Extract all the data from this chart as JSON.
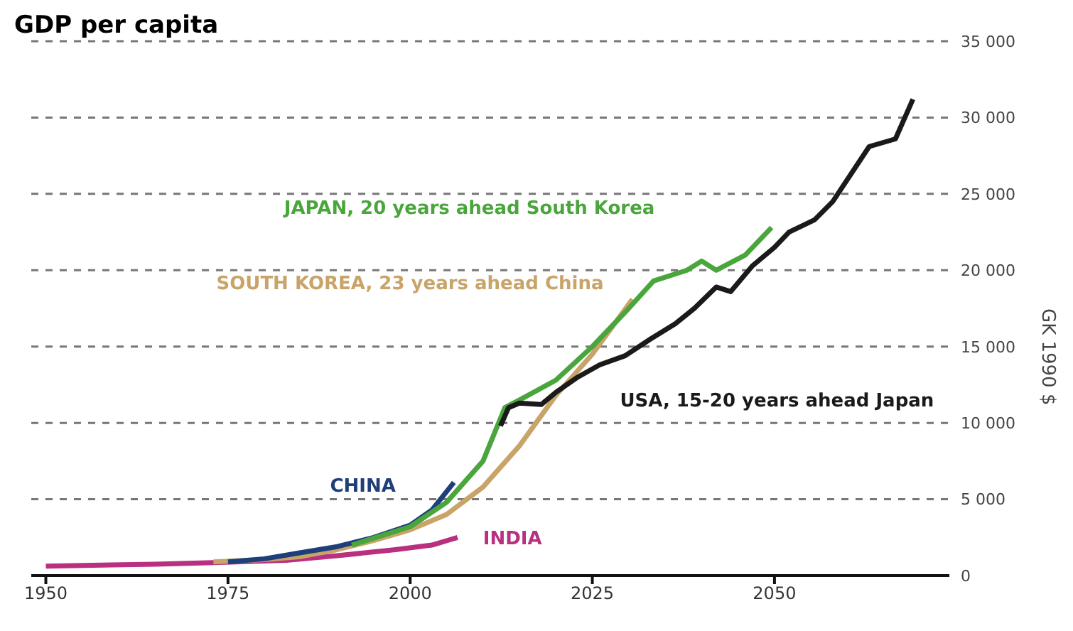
{
  "chart_data": {
    "type": "line",
    "title": "GDP per capita",
    "ylabel": "GK 1990 $",
    "xlim": [
      1948,
      2074
    ],
    "xticks": [
      1950,
      1975,
      2000,
      2025,
      2050
    ],
    "ylim": [
      0,
      35000
    ],
    "yticks": [
      0,
      {
        "value": 5000,
        "label": "5 000"
      },
      {
        "value": 10000,
        "label": "10 000"
      },
      {
        "value": 15000,
        "label": "15 000"
      },
      {
        "value": 20000,
        "label": "20 000"
      },
      {
        "value": 25000,
        "label": "25 000"
      },
      {
        "value": 30000,
        "label": "30 000"
      },
      {
        "value": 35000,
        "label": "35 000"
      }
    ],
    "grid": "y",
    "legend": false,
    "marker": "none",
    "line_style": "solid",
    "series": [
      {
        "name": "INDIA",
        "color": "#b8307f",
        "x": [
          1950,
          1959,
          1965,
          1973,
          1983,
          1990,
          1998,
          2003,
          2006.5
        ],
        "values": [
          620,
          700,
          750,
          850,
          1000,
          1300,
          1700,
          2000,
          2500
        ]
      },
      {
        "name": "SOUTH KOREA, 23 years ahead China",
        "color": "#c9a468",
        "x": [
          1973,
          1980,
          1985,
          1990,
          1995,
          2000,
          2005,
          2010,
          2015,
          2020,
          2025,
          2030.5
        ],
        "values": [
          900,
          1050,
          1250,
          1700,
          2300,
          3000,
          4000,
          5800,
          8500,
          11800,
          14500,
          18100
        ]
      },
      {
        "name": "CHINA",
        "color": "#1f3f7a",
        "x": [
          1975,
          1980,
          1985,
          1990,
          1995,
          2000,
          2003,
          2006
        ],
        "values": [
          900,
          1100,
          1500,
          1900,
          2500,
          3300,
          4300,
          6100
        ]
      },
      {
        "name": "JAPAN, 20 years ahead South Korea",
        "color": "#4aa63c",
        "x": [
          1992,
          2000,
          2005,
          2010,
          2013,
          2015,
          2020,
          2025,
          2030,
          2033.4,
          2038,
          2040,
          2042,
          2044,
          2046,
          2049.6
        ],
        "values": [
          2000,
          3200,
          4800,
          7500,
          11000,
          11500,
          12800,
          15000,
          17500,
          19300,
          20000,
          20600,
          20000,
          20500,
          21000,
          22800
        ]
      },
      {
        "name": "USA, 15-20 years ahead Japan",
        "color": "#1a1a1a",
        "x": [
          2012.4,
          2013.5,
          2015,
          2018,
          2020,
          2023,
          2026,
          2029.5,
          2033,
          2036.4,
          2039,
          2042,
          2044,
          2047,
          2050,
          2052,
          2055.5,
          2058,
          2063,
          2066.6,
          2069
        ],
        "values": [
          9800,
          11000,
          11300,
          11200,
          12000,
          13000,
          13800,
          14400,
          15500,
          16500,
          17500,
          18900,
          18600,
          20300,
          21500,
          22500,
          23300,
          24500,
          28100,
          28600,
          31200
        ]
      }
    ]
  }
}
